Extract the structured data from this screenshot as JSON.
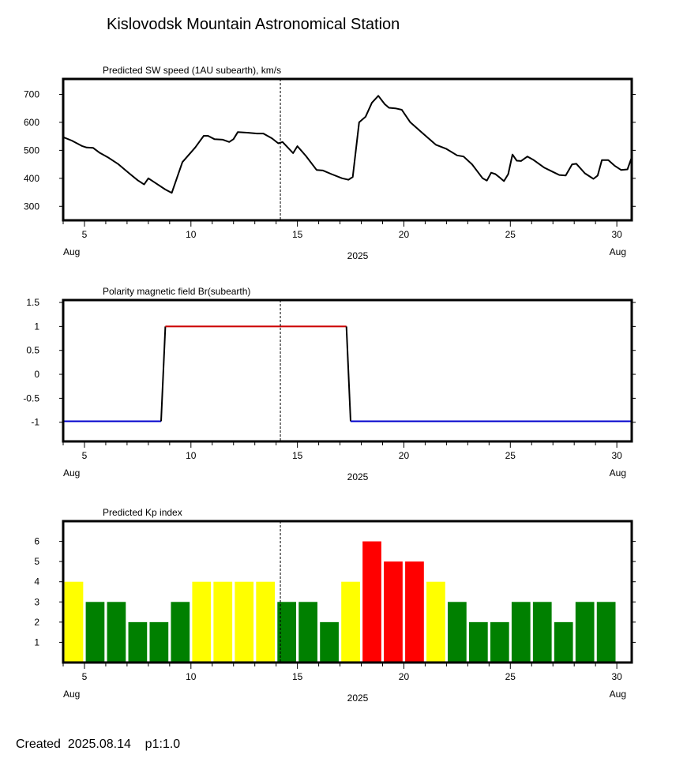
{
  "title": "Kislovodsk Mountain Astronomical Station",
  "footer": "Created  2025.08.14    p1:1.0",
  "current_day": 14.2,
  "x_axis": {
    "range": [
      4,
      30.7
    ],
    "ticks": [
      5,
      10,
      15,
      20,
      25,
      30
    ],
    "tick_labels": [
      "5",
      "10",
      "15",
      "20",
      "25",
      "30"
    ],
    "start_month": "Aug",
    "end_month": "Aug",
    "year": "2025"
  },
  "chart_data": [
    {
      "type": "line",
      "title": "Predicted SW speed (1AU subearth), km/s",
      "ylim": [
        250,
        755
      ],
      "yticks": [
        300,
        400,
        500,
        600,
        700
      ],
      "ytick_labels": [
        "300",
        "400",
        "500",
        "600",
        "700"
      ],
      "series": [
        {
          "color": "#000000",
          "x": [
            4.0,
            4.4,
            4.9,
            5.1,
            5.4,
            5.7,
            6.1,
            6.6,
            7.1,
            7.5,
            7.8,
            8.0,
            8.4,
            8.8,
            9.1,
            9.6,
            10.2,
            10.6,
            10.8,
            11.1,
            11.5,
            11.8,
            12.0,
            12.2,
            12.7,
            13.1,
            13.4,
            13.8,
            14.1,
            14.3,
            14.8,
            15.0,
            15.4,
            15.9,
            16.2,
            16.6,
            17.1,
            17.4,
            17.6,
            17.9,
            18.2,
            18.5,
            18.8,
            19.1,
            19.3,
            19.6,
            19.9,
            20.3,
            20.9,
            21.5,
            22.0,
            22.5,
            22.8,
            23.2,
            23.5,
            23.7,
            23.9,
            24.1,
            24.3,
            24.5,
            24.7,
            24.9,
            25.1,
            25.3,
            25.5,
            25.8,
            26.1,
            26.6,
            27.0,
            27.3,
            27.6,
            27.9,
            28.1,
            28.5,
            28.9,
            29.1,
            29.3,
            29.6,
            29.9,
            30.2,
            30.5,
            30.7
          ],
          "y": [
            547,
            535,
            515,
            510,
            509,
            492,
            475,
            450,
            418,
            393,
            378,
            400,
            380,
            360,
            348,
            458,
            510,
            552,
            552,
            540,
            538,
            530,
            540,
            565,
            563,
            560,
            560,
            543,
            525,
            530,
            490,
            515,
            480,
            430,
            428,
            415,
            400,
            395,
            405,
            600,
            620,
            670,
            695,
            665,
            652,
            650,
            645,
            600,
            560,
            520,
            505,
            482,
            478,
            450,
            420,
            400,
            392,
            420,
            415,
            403,
            390,
            415,
            485,
            463,
            462,
            478,
            465,
            438,
            423,
            412,
            410,
            450,
            452,
            418,
            398,
            410,
            465,
            465,
            445,
            430,
            432,
            475
          ]
        }
      ]
    },
    {
      "type": "line",
      "title": "Polarity magnetic field  Br(subearth)",
      "ylim": [
        -1.4,
        1.55
      ],
      "yticks": [
        -1,
        -0.5,
        0,
        0.5,
        1,
        1.5
      ],
      "ytick_labels": [
        "-1",
        "-0.5",
        "0",
        "0.5",
        "1",
        "1.5"
      ],
      "series": [
        {
          "color": "#0000cc",
          "x": [
            4.0,
            8.6
          ],
          "y": [
            -0.98,
            -0.98
          ]
        },
        {
          "color": "#000000",
          "x": [
            8.6,
            8.8
          ],
          "y": [
            -0.98,
            1.0
          ]
        },
        {
          "color": "#cc0000",
          "x": [
            8.8,
            17.3
          ],
          "y": [
            1.0,
            1.0
          ]
        },
        {
          "color": "#000000",
          "x": [
            17.3,
            17.5
          ],
          "y": [
            1.0,
            -0.98
          ]
        },
        {
          "color": "#0000cc",
          "x": [
            17.5,
            30.7
          ],
          "y": [
            -0.98,
            -0.98
          ]
        }
      ]
    },
    {
      "type": "bar",
      "title": "Predicted Kp index",
      "ylim": [
        0,
        7
      ],
      "yticks": [
        1,
        2,
        3,
        4,
        5,
        6
      ],
      "ytick_labels": [
        "1",
        "2",
        "3",
        "4",
        "5",
        "6"
      ],
      "bar_width_days": 0.88,
      "x": [
        4.5,
        5.5,
        6.5,
        7.5,
        8.5,
        9.5,
        10.5,
        11.5,
        12.5,
        13.5,
        14.5,
        15.5,
        16.5,
        17.5,
        18.5,
        19.5,
        20.5,
        21.5,
        22.5,
        23.5,
        24.5,
        25.5,
        26.5,
        27.5,
        28.5,
        29.5
      ],
      "values": [
        4,
        3,
        3,
        2,
        2,
        3,
        4,
        4,
        4,
        4,
        3,
        3,
        2,
        4,
        6,
        5,
        5,
        4,
        3,
        2,
        2,
        3,
        3,
        2,
        3,
        3
      ],
      "level_colors": {
        "low": "#008000",
        "moderate": "#ffff00",
        "high": "#ff0000"
      }
    }
  ]
}
